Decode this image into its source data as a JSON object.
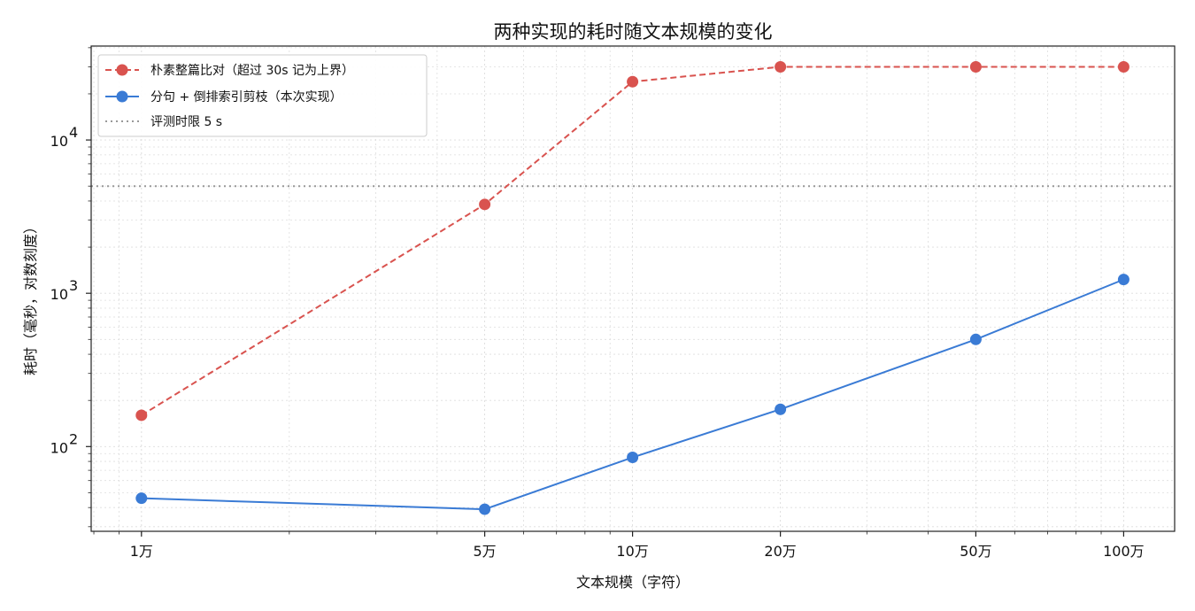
{
  "chart_data": {
    "type": "line",
    "title": "两种实现的耗时随文本规模的变化",
    "xlabel": "文本规模（字符）",
    "ylabel": "耗时（毫秒，对数刻度）",
    "x_scale": "log",
    "y_scale": "log",
    "x": [
      10000,
      50000,
      100000,
      200000,
      500000,
      1000000
    ],
    "categories": [
      "1万",
      "5万",
      "10万",
      "20万",
      "50万",
      "100万"
    ],
    "xlim": [
      7900,
      1270000
    ],
    "ylim": [
      28,
      41000
    ],
    "y_ticks": [
      100,
      1000,
      10000
    ],
    "y_tick_labels": [
      {
        "base": "10",
        "exp": "2"
      },
      {
        "base": "10",
        "exp": "3"
      },
      {
        "base": "10",
        "exp": "4"
      }
    ],
    "grid": true,
    "legend_position": "top-left",
    "series": [
      {
        "name": "朴素整篇比对（超过 30s 记为上界）",
        "values": [
          160,
          3800,
          24000,
          30000,
          30000,
          30000
        ],
        "color": "#d9534f",
        "line_style": "dashed",
        "marker": "circle"
      },
      {
        "name": "分句 + 倒排索引剪枝（本次实现）",
        "values": [
          46,
          39,
          85,
          175,
          500,
          1230
        ],
        "color": "#3a7bd5",
        "line_style": "solid",
        "marker": "circle"
      }
    ],
    "reference_line": {
      "name": "评测时限 5 s",
      "value": 5000,
      "color": "#999999",
      "line_style": "dotted"
    }
  }
}
